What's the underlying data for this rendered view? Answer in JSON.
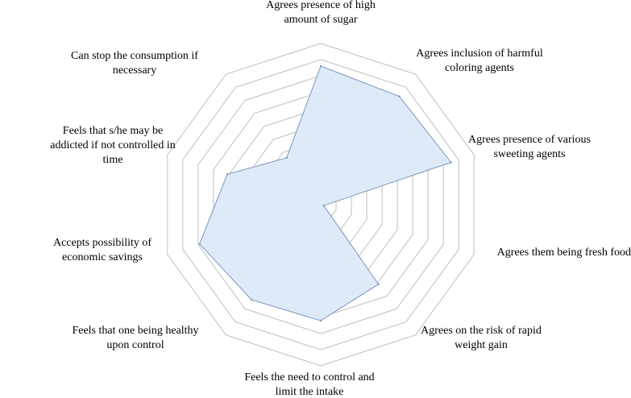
{
  "chart_data": {
    "type": "radar",
    "title": "",
    "categories": [
      "Agrees presence of high amount of sugar",
      "Agrees inclusion of harmful coloring agents",
      "Agrees presence of various sweeting agents",
      "Agrees them being fresh food",
      "Agrees on the risk of rapid weight gain",
      "Feels the need to control and limit the intake",
      "Feels that one being healthy upon control",
      "Accepts possibility of economic savings",
      "Feels that s/he may be addicted if not controlled in time",
      "Can stop the consumption if necessary"
    ],
    "category_lines": [
      [
        "Agrees presence of high",
        "amount of sugar"
      ],
      [
        "Agrees inclusion of harmful",
        "coloring agents"
      ],
      [
        "Agrees presence of various",
        "sweeting agents"
      ],
      [
        "Agrees them being fresh food"
      ],
      [
        "Agrees on the risk of rapid",
        "weight gain"
      ],
      [
        "Feels the need to control and",
        "limit the intake"
      ],
      [
        "Feels that one being healthy",
        "upon control"
      ],
      [
        "Accepts possibility of",
        "economic savings"
      ],
      [
        "Feels that s/he may be",
        "addicted if not controlled in",
        "time"
      ],
      [
        "Can stop the consumption if",
        "necessary"
      ]
    ],
    "series": [
      {
        "values": [
          0.86,
          0.83,
          0.85,
          0.02,
          0.61,
          0.72,
          0.73,
          0.79,
          0.61,
          0.36
        ]
      }
    ],
    "rlim": [
      0,
      1
    ],
    "rings": 10,
    "grid": true,
    "legend": "none",
    "colors": {
      "fill": "#dbe8f7",
      "stroke": "#7a96bd",
      "grid": "#bfbfbf"
    }
  }
}
